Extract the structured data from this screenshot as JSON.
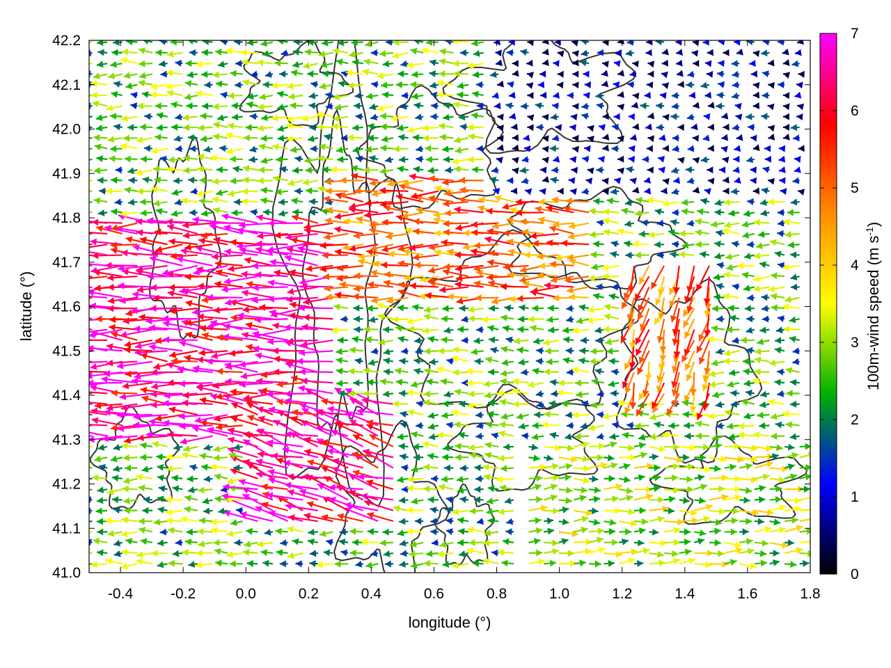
{
  "chart_data": {
    "type": "vector-field",
    "title": "",
    "xlabel": "longitude (°)",
    "ylabel": "latitude (°)",
    "xlim": [
      -0.5,
      1.8
    ],
    "ylim": [
      41.0,
      42.2
    ],
    "xticks": [
      -0.4,
      -0.2,
      0.0,
      0.2,
      0.4,
      0.6,
      0.8,
      1.0,
      1.2,
      1.4,
      1.6,
      1.8
    ],
    "xtick_labels": [
      "-0.4",
      "-0.2",
      "0.0",
      "0.2",
      "0.4",
      "0.6",
      "0.8",
      "1.0",
      "1.2",
      "1.4",
      "1.6",
      "1.8"
    ],
    "yticks": [
      41.0,
      41.1,
      41.2,
      41.3,
      41.4,
      41.5,
      41.6,
      41.7,
      41.8,
      41.9,
      42.0,
      42.1,
      42.2
    ],
    "ytick_labels": [
      "41.0",
      "41.1",
      "41.2",
      "41.3",
      "41.4",
      "41.5",
      "41.6",
      "41.7",
      "41.8",
      "41.9",
      "42.0",
      "42.1",
      "42.2"
    ],
    "grid": true,
    "colorbar": {
      "label_prefix": "100m-wind speed (m s",
      "label_exponent": "-1",
      "label_suffix": ")",
      "range": [
        0,
        7
      ],
      "ticks": [
        0,
        1,
        2,
        3,
        4,
        5,
        6,
        7
      ],
      "tick_labels": [
        "0",
        "1",
        "2",
        "3",
        "4",
        "5",
        "6",
        "7"
      ],
      "colors": [
        "#000000",
        "#0000ff",
        "#00b000",
        "#ffff00",
        "#ff8c00",
        "#ff0000",
        "#ff00ff"
      ]
    },
    "wind_field": {
      "description_units": "speed in m s-1, direction: mostly westward (easterly flow) in the north/west, north-eastward in the south-east",
      "regions": [
        {
          "lon": [
            -0.5,
            0.3
          ],
          "lat": [
            41.3,
            41.8
          ],
          "speed": 6.5,
          "u": -1,
          "v": 0.02
        },
        {
          "lon": [
            0.3,
            1.1
          ],
          "lat": [
            41.6,
            41.9
          ],
          "speed": 5.0,
          "u": -1,
          "v": 0.02
        },
        {
          "lon": [
            0.6,
            1.3
          ],
          "lat": [
            41.4,
            41.6
          ],
          "speed": 2.5,
          "u": -1,
          "v": 0.0
        },
        {
          "lon": [
            1.2,
            1.5
          ],
          "lat": [
            41.4,
            41.7
          ],
          "speed": 5.0,
          "u": -0.3,
          "v": -1
        },
        {
          "lon": [
            0.9,
            1.8
          ],
          "lat": [
            41.0,
            41.3
          ],
          "speed": 3.0,
          "u": 1,
          "v": 0.05
        },
        {
          "lon": [
            0.0,
            0.5
          ],
          "lat": [
            41.1,
            41.4
          ],
          "speed": 6.5,
          "u": -1,
          "v": 0.3
        },
        {
          "lon": [
            0.8,
            1.8
          ],
          "lat": [
            41.85,
            42.2
          ],
          "speed": 0.8,
          "u": -1,
          "v": 0.0
        }
      ]
    },
    "contours": {
      "color": "#333333",
      "description": "terrain height contour lines"
    }
  }
}
